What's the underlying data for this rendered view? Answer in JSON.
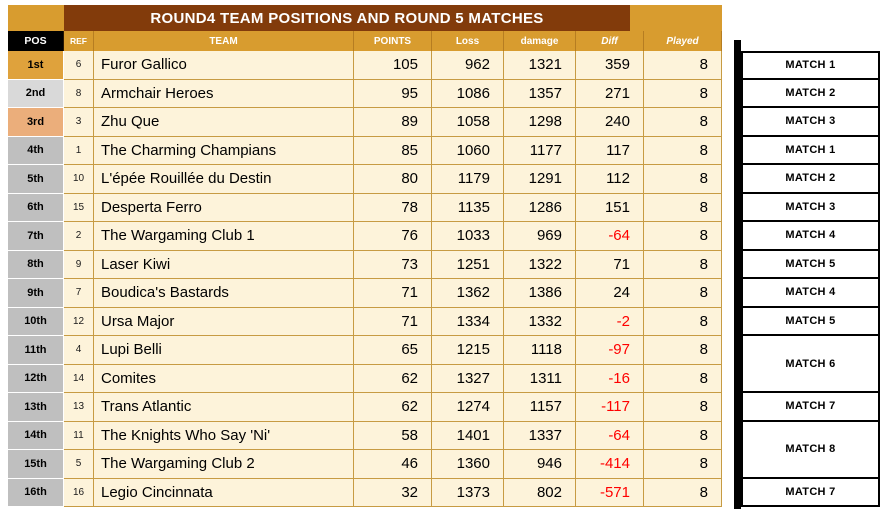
{
  "title": "ROUND4 TEAM POSITIONS AND ROUND 5 MATCHES",
  "columns": {
    "pos": "POS",
    "ref": "REF",
    "team": "TEAM",
    "points": "POINTS",
    "loss": "Loss",
    "damage": "damage",
    "diff": "Diff",
    "played": "Played"
  },
  "rows": [
    {
      "pos": "1st",
      "ref": "6",
      "team": "Furor Gallico",
      "points": "105",
      "loss": "962",
      "damage": "1321",
      "diff": "359",
      "played": "8",
      "medal": "gold"
    },
    {
      "pos": "2nd",
      "ref": "8",
      "team": "Armchair Heroes",
      "points": "95",
      "loss": "1086",
      "damage": "1357",
      "diff": "271",
      "played": "8",
      "medal": "silver"
    },
    {
      "pos": "3rd",
      "ref": "3",
      "team": "Zhu Que",
      "points": "89",
      "loss": "1058",
      "damage": "1298",
      "diff": "240",
      "played": "8",
      "medal": "bronze"
    },
    {
      "pos": "4th",
      "ref": "1",
      "team": "The Charming Champians",
      "points": "85",
      "loss": "1060",
      "damage": "1177",
      "diff": "117",
      "played": "8",
      "medal": "none"
    },
    {
      "pos": "5th",
      "ref": "10",
      "team": "L'épée Rouillée du Destin",
      "points": "80",
      "loss": "1179",
      "damage": "1291",
      "diff": "112",
      "played": "8",
      "medal": "none"
    },
    {
      "pos": "6th",
      "ref": "15",
      "team": "Desperta Ferro",
      "points": "78",
      "loss": "1135",
      "damage": "1286",
      "diff": "151",
      "played": "8",
      "medal": "none"
    },
    {
      "pos": "7th",
      "ref": "2",
      "team": "The Wargaming Club 1",
      "points": "76",
      "loss": "1033",
      "damage": "969",
      "diff": "-64",
      "played": "8",
      "medal": "none"
    },
    {
      "pos": "8th",
      "ref": "9",
      "team": "Laser Kiwi",
      "points": "73",
      "loss": "1251",
      "damage": "1322",
      "diff": "71",
      "played": "8",
      "medal": "none"
    },
    {
      "pos": "9th",
      "ref": "7",
      "team": "Boudica's Bastards",
      "points": "71",
      "loss": "1362",
      "damage": "1386",
      "diff": "24",
      "played": "8",
      "medal": "none"
    },
    {
      "pos": "10th",
      "ref": "12",
      "team": "Ursa Major",
      "points": "71",
      "loss": "1334",
      "damage": "1332",
      "diff": "-2",
      "played": "8",
      "medal": "none"
    },
    {
      "pos": "11th",
      "ref": "4",
      "team": "Lupi Belli",
      "points": "65",
      "loss": "1215",
      "damage": "1118",
      "diff": "-97",
      "played": "8",
      "medal": "none"
    },
    {
      "pos": "12th",
      "ref": "14",
      "team": "Comites",
      "points": "62",
      "loss": "1327",
      "damage": "1311",
      "diff": "-16",
      "played": "8",
      "medal": "none"
    },
    {
      "pos": "13th",
      "ref": "13",
      "team": "Trans Atlantic",
      "points": "62",
      "loss": "1274",
      "damage": "1157",
      "diff": "-117",
      "played": "8",
      "medal": "none"
    },
    {
      "pos": "14th",
      "ref": "11",
      "team": "The Knights Who Say 'Ni'",
      "points": "58",
      "loss": "1401",
      "damage": "1337",
      "diff": "-64",
      "played": "8",
      "medal": "none"
    },
    {
      "pos": "15th",
      "ref": "5",
      "team": "The Wargaming Club 2",
      "points": "46",
      "loss": "1360",
      "damage": "946",
      "diff": "-414",
      "played": "8",
      "medal": "none"
    },
    {
      "pos": "16th",
      "ref": "16",
      "team": "Legio Cincinnata",
      "points": "32",
      "loss": "1373",
      "damage": "802",
      "diff": "-571",
      "played": "8",
      "medal": "none"
    }
  ],
  "matches": [
    {
      "label": "MATCH 1",
      "row": 0,
      "span": 1
    },
    {
      "label": "MATCH 2",
      "row": 1,
      "span": 1
    },
    {
      "label": "MATCH 3",
      "row": 2,
      "span": 1
    },
    {
      "label": "MATCH 1",
      "row": 3,
      "span": 1
    },
    {
      "label": "MATCH 2",
      "row": 4,
      "span": 1
    },
    {
      "label": "MATCH 3",
      "row": 5,
      "span": 1
    },
    {
      "label": "MATCH 4",
      "row": 6,
      "span": 1
    },
    {
      "label": "MATCH 5",
      "row": 7,
      "span": 1
    },
    {
      "label": "MATCH 4",
      "row": 8,
      "span": 1
    },
    {
      "label": "MATCH 5",
      "row": 9,
      "span": 1
    },
    {
      "label": "MATCH 6",
      "row": 10,
      "span": 2
    },
    {
      "label": "MATCH 7",
      "row": 12,
      "span": 1
    },
    {
      "label": "MATCH 8",
      "row": 13,
      "span": 2
    },
    {
      "label": "MATCH 7",
      "row": 15,
      "span": 1
    }
  ],
  "colors": {
    "title_bg": "#823B0B",
    "gold": "#D89C2F",
    "header_pos_bg": "#000000",
    "row_bg": "#FDF3DA",
    "grid": "#C79B43",
    "negative": "#FF0000",
    "medal": {
      "gold": "#DFA23C",
      "silver": "#D9D9D9",
      "bronze": "#EBAE7B",
      "none": "#BFBFBF"
    }
  }
}
